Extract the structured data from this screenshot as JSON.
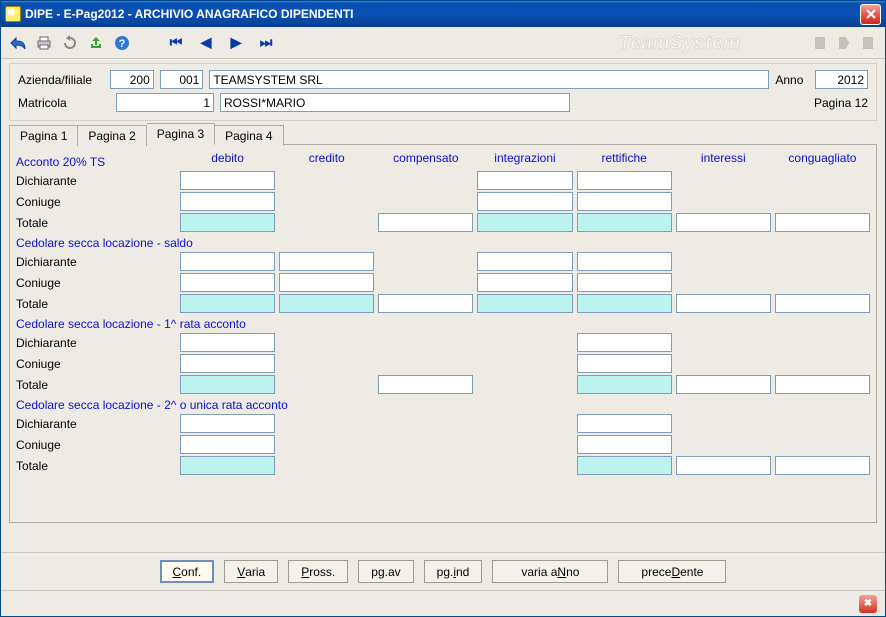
{
  "theme": {
    "titlebar_gradient_start": "#3b84e0",
    "titlebar_gradient_end": "#073f91",
    "panel_bg": "#edebe4",
    "field_border": "#7f9db9",
    "readonly_bg": "#bdf3ef",
    "link_blue": "#0b10d1"
  },
  "window": {
    "title": "DIPE   -  E-Pag2012   -   ARCHIVIO ANAGRAFICO DIPENDENTI"
  },
  "toolbar": {
    "brand": "TeamSystem"
  },
  "header": {
    "azienda_label": "Azienda/filiale",
    "azienda": "200",
    "filiale": "001",
    "ragione": "TEAMSYSTEM SRL",
    "anno_label": "Anno",
    "anno": "2012",
    "matricola_label": "Matricola",
    "matricola": "1",
    "nome": "ROSSI*MARIO",
    "pagina_label": "Pagina 12"
  },
  "tabs": {
    "items": [
      "Pagina 1",
      "Pagina 2",
      "Pagina 3",
      "Pagina 4"
    ],
    "selected": 2
  },
  "columns": [
    "debito",
    "credito",
    "compensato",
    "integrazioni",
    "rettifiche",
    "interessi",
    "conguagliato"
  ],
  "row_labels": {
    "dichiarante": "Dichiarante",
    "coniuge": "Coniuge",
    "totale": "Totale"
  },
  "sections": [
    {
      "title": "Acconto 20% TS",
      "rows": {
        "dichiarante": {
          "debito": true,
          "credito": false,
          "compensato": false,
          "integrazioni": true,
          "rettifiche": true,
          "interessi": false,
          "conguagliato": false
        },
        "coniuge": {
          "debito": true,
          "credito": false,
          "compensato": false,
          "integrazioni": true,
          "rettifiche": true,
          "interessi": false,
          "conguagliato": false
        },
        "totale": {
          "debito": "ro",
          "credito": false,
          "compensato": true,
          "integrazioni": "ro",
          "rettifiche": "ro",
          "interessi": true,
          "conguagliato": true
        }
      }
    },
    {
      "title": "Cedolare secca locazione - saldo",
      "rows": {
        "dichiarante": {
          "debito": true,
          "credito": true,
          "compensato": false,
          "integrazioni": true,
          "rettifiche": true,
          "interessi": false,
          "conguagliato": false
        },
        "coniuge": {
          "debito": true,
          "credito": true,
          "compensato": false,
          "integrazioni": true,
          "rettifiche": true,
          "interessi": false,
          "conguagliato": false
        },
        "totale": {
          "debito": "ro",
          "credito": "ro",
          "compensato": true,
          "integrazioni": "ro",
          "rettifiche": "ro",
          "interessi": true,
          "conguagliato": true
        }
      }
    },
    {
      "title": "Cedolare secca locazione - 1^ rata acconto",
      "rows": {
        "dichiarante": {
          "debito": true,
          "credito": false,
          "compensato": false,
          "integrazioni": false,
          "rettifiche": true,
          "interessi": false,
          "conguagliato": false
        },
        "coniuge": {
          "debito": true,
          "credito": false,
          "compensato": false,
          "integrazioni": false,
          "rettifiche": true,
          "interessi": false,
          "conguagliato": false
        },
        "totale": {
          "debito": "ro",
          "credito": false,
          "compensato": true,
          "integrazioni": false,
          "rettifiche": "ro",
          "interessi": true,
          "conguagliato": true
        }
      }
    },
    {
      "title": "Cedolare secca locazione - 2^ o unica rata acconto",
      "rows": {
        "dichiarante": {
          "debito": true,
          "credito": false,
          "compensato": false,
          "integrazioni": false,
          "rettifiche": true,
          "interessi": false,
          "conguagliato": false
        },
        "coniuge": {
          "debito": true,
          "credito": false,
          "compensato": false,
          "integrazioni": false,
          "rettifiche": true,
          "interessi": false,
          "conguagliato": false
        },
        "totale": {
          "debito": "ro",
          "credito": false,
          "compensato": false,
          "integrazioni": false,
          "rettifiche": "ro",
          "interessi": true,
          "conguagliato": true
        }
      }
    }
  ],
  "buttons": {
    "conf": {
      "pre": "",
      "ul": "C",
      "post": "onf."
    },
    "varia": {
      "pre": "",
      "ul": "V",
      "post": "aria"
    },
    "pross": {
      "pre": "",
      "ul": "P",
      "post": "ross."
    },
    "pgav": {
      "pre": "p",
      "ul": "g",
      "post": ".av"
    },
    "pgind": {
      "pre": "pg.",
      "ul": "i",
      "post": "nd"
    },
    "variaanno": {
      "pre": "varia a",
      "ul": "N",
      "post": "no"
    },
    "precedente": {
      "pre": "prece",
      "ul": "D",
      "post": "ente"
    }
  }
}
